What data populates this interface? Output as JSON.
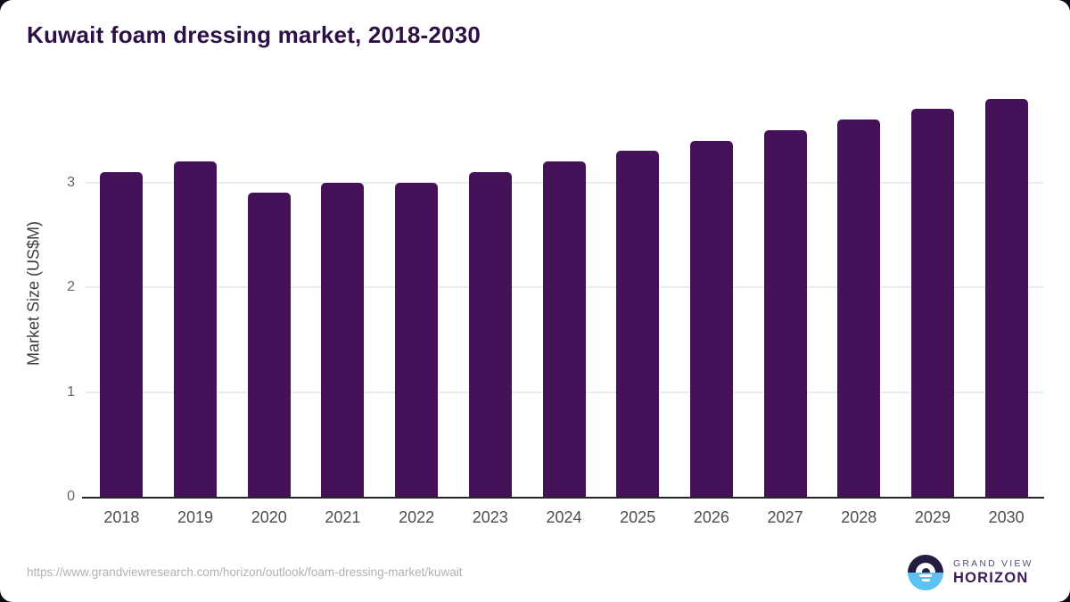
{
  "title": {
    "text": "Kuwait foam dressing market, 2018-2030",
    "color": "#2d1145"
  },
  "chart_data": {
    "type": "bar",
    "categories": [
      "2018",
      "2019",
      "2020",
      "2021",
      "2022",
      "2023",
      "2024",
      "2025",
      "2026",
      "2027",
      "2028",
      "2029",
      "2030"
    ],
    "values": [
      3.1,
      3.2,
      2.9,
      3.0,
      3.0,
      3.1,
      3.2,
      3.3,
      3.4,
      3.5,
      3.6,
      3.7,
      3.8
    ],
    "title": "Kuwait foam dressing market, 2018-2030",
    "xlabel": "",
    "ylabel": "Market Size (US$M)",
    "ylim": [
      0,
      3.9
    ],
    "yticks": [
      0,
      1,
      2,
      3
    ],
    "grid": true,
    "legend": "none",
    "bar_color": "#451259",
    "gridline_color": "#ececec",
    "axis_line_color": "#262626",
    "ytick_label_color": "#666666",
    "xtick_label_color": "#4d4d4d"
  },
  "footer": {
    "source_url": "https://www.grandviewresearch.com/horizon/outlook/foam-dressing-market/kuwait",
    "url_color": "#b1b1b1",
    "logo": {
      "brand_top": "GRAND VIEW",
      "brand_bottom": "HORIZON",
      "icon_dark_color": "#261b40",
      "icon_blue_color": "#59c4f1"
    }
  }
}
